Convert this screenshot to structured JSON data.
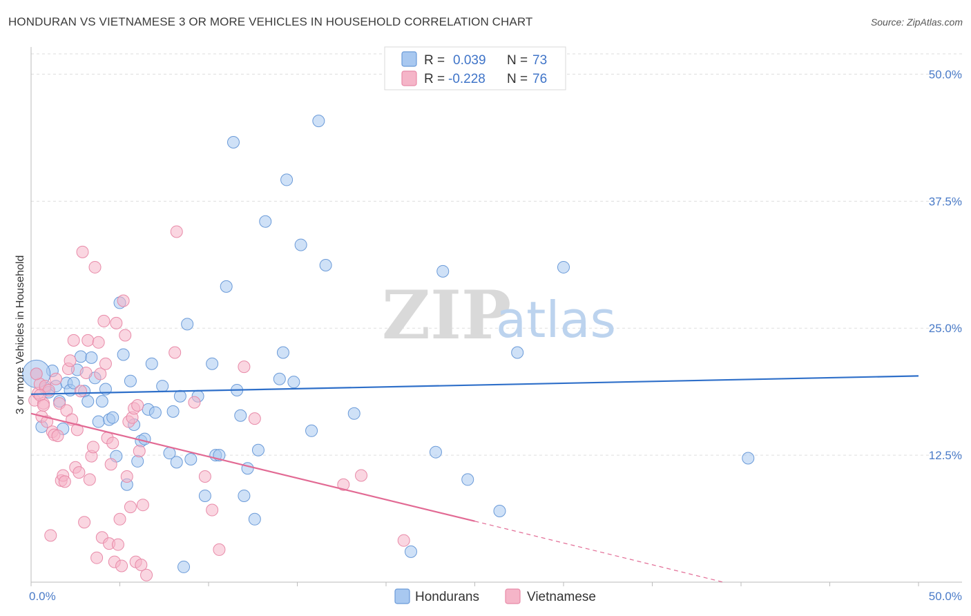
{
  "title": "HONDURAN VS VIETNAMESE 3 OR MORE VEHICLES IN HOUSEHOLD CORRELATION CHART",
  "source": "Source: ZipAtlas.com",
  "watermark": {
    "zip": "ZIP",
    "atlas": "atlas"
  },
  "legend": {
    "rows": [
      {
        "r_label": "R =",
        "r_value": "0.039",
        "n_label": "N =",
        "n_value": "73",
        "color": "#a8c8f0"
      },
      {
        "r_label": "R =",
        "r_value": "-0.228",
        "n_label": "N =",
        "n_value": "76",
        "color": "#f5b5c8"
      }
    ]
  },
  "bottom_legend": [
    "Hondurans",
    "Vietnamese"
  ],
  "chart_data": {
    "type": "scatter",
    "title": "HONDURAN VS VIETNAMESE 3 OR MORE VEHICLES IN HOUSEHOLD CORRELATION CHART",
    "xlabel": "",
    "ylabel": "3 or more Vehicles in Household",
    "xlim": [
      0,
      50
    ],
    "ylim": [
      0,
      52
    ],
    "x_tick_labels": [
      "0.0%",
      "50.0%"
    ],
    "y_ticks": [
      12.5,
      25.0,
      37.5,
      50.0
    ],
    "y_tick_labels": [
      "12.5%",
      "25.0%",
      "37.5%",
      "50.0%"
    ],
    "series": [
      {
        "name": "Hondurans",
        "color": "#a8c8f0",
        "stroke": "#6a9ad8",
        "trend": {
          "x0": 0,
          "y0": 18.5,
          "x1": 50,
          "y1": 20.3,
          "color": "#2e6fc9"
        },
        "points": [
          [
            0.3,
            20.5
          ],
          [
            0.6,
            15.3
          ],
          [
            0.8,
            19.1
          ],
          [
            1.0,
            18.7
          ],
          [
            1.2,
            20.8
          ],
          [
            1.4,
            19.3
          ],
          [
            1.6,
            17.8
          ],
          [
            1.8,
            15.1
          ],
          [
            2.0,
            19.6
          ],
          [
            2.2,
            18.9
          ],
          [
            2.4,
            19.6
          ],
          [
            2.6,
            20.9
          ],
          [
            2.8,
            22.2
          ],
          [
            3.0,
            18.8
          ],
          [
            3.2,
            17.8
          ],
          [
            3.4,
            22.1
          ],
          [
            3.6,
            20.1
          ],
          [
            3.8,
            15.8
          ],
          [
            4.0,
            17.8
          ],
          [
            4.2,
            19.0
          ],
          [
            4.4,
            16.0
          ],
          [
            4.6,
            16.2
          ],
          [
            4.8,
            12.4
          ],
          [
            5.0,
            27.5
          ],
          [
            5.2,
            22.4
          ],
          [
            5.4,
            9.6
          ],
          [
            5.6,
            19.8
          ],
          [
            5.8,
            15.5
          ],
          [
            6.0,
            11.9
          ],
          [
            6.2,
            13.9
          ],
          [
            6.4,
            14.1
          ],
          [
            6.6,
            17.0
          ],
          [
            6.8,
            21.5
          ],
          [
            7.0,
            16.7
          ],
          [
            7.4,
            19.3
          ],
          [
            7.8,
            12.7
          ],
          [
            8.0,
            16.8
          ],
          [
            8.2,
            11.8
          ],
          [
            8.4,
            18.3
          ],
          [
            8.6,
            1.5
          ],
          [
            8.8,
            25.4
          ],
          [
            9.0,
            12.1
          ],
          [
            9.4,
            18.3
          ],
          [
            9.8,
            8.5
          ],
          [
            10.2,
            21.5
          ],
          [
            10.4,
            12.5
          ],
          [
            10.6,
            12.5
          ],
          [
            11.0,
            29.1
          ],
          [
            11.4,
            43.3
          ],
          [
            11.6,
            18.9
          ],
          [
            11.8,
            16.4
          ],
          [
            12.0,
            8.5
          ],
          [
            12.2,
            11.2
          ],
          [
            12.6,
            6.2
          ],
          [
            12.8,
            13.0
          ],
          [
            13.2,
            35.5
          ],
          [
            14.0,
            20.0
          ],
          [
            14.2,
            22.6
          ],
          [
            14.4,
            39.6
          ],
          [
            14.8,
            19.7
          ],
          [
            15.2,
            33.2
          ],
          [
            15.8,
            14.9
          ],
          [
            16.2,
            45.4
          ],
          [
            16.6,
            31.2
          ],
          [
            18.2,
            16.6
          ],
          [
            21.4,
            3.0
          ],
          [
            22.8,
            12.8
          ],
          [
            23.2,
            30.6
          ],
          [
            24.6,
            10.1
          ],
          [
            26.4,
            7.0
          ],
          [
            27.4,
            22.6
          ],
          [
            30.0,
            31.0
          ],
          [
            40.4,
            12.2
          ]
        ],
        "big_point": [
          0.3,
          20.5
        ]
      },
      {
        "name": "Vietnamese",
        "color": "#f5b5c8",
        "stroke": "#e88aa8",
        "trend": {
          "x0": 0,
          "y0": 16.6,
          "x1": 25.0,
          "y1": 6.0,
          "color": "#e26a94",
          "dashed_to": [
            39.0,
            0.0
          ]
        },
        "points": [
          [
            0.2,
            17.9
          ],
          [
            0.4,
            18.6
          ],
          [
            0.5,
            19.5
          ],
          [
            0.6,
            16.3
          ],
          [
            0.7,
            17.6
          ],
          [
            0.8,
            19.3
          ],
          [
            0.9,
            15.8
          ],
          [
            1.0,
            18.9
          ],
          [
            1.1,
            4.6
          ],
          [
            1.2,
            14.8
          ],
          [
            1.3,
            14.5
          ],
          [
            1.4,
            20.0
          ],
          [
            1.5,
            14.4
          ],
          [
            1.6,
            17.6
          ],
          [
            1.7,
            10.0
          ],
          [
            1.8,
            10.5
          ],
          [
            1.9,
            9.9
          ],
          [
            2.0,
            16.9
          ],
          [
            2.1,
            21.0
          ],
          [
            2.2,
            21.8
          ],
          [
            2.3,
            16.0
          ],
          [
            2.4,
            23.8
          ],
          [
            2.5,
            11.3
          ],
          [
            2.6,
            15.0
          ],
          [
            2.7,
            10.8
          ],
          [
            2.8,
            18.8
          ],
          [
            2.9,
            32.5
          ],
          [
            3.0,
            5.9
          ],
          [
            3.1,
            20.6
          ],
          [
            3.2,
            23.8
          ],
          [
            3.3,
            10.1
          ],
          [
            3.4,
            12.4
          ],
          [
            3.5,
            13.3
          ],
          [
            3.6,
            31.0
          ],
          [
            3.7,
            2.4
          ],
          [
            3.8,
            23.6
          ],
          [
            3.9,
            20.5
          ],
          [
            4.0,
            4.4
          ],
          [
            4.1,
            25.7
          ],
          [
            4.2,
            21.5
          ],
          [
            4.3,
            14.2
          ],
          [
            4.4,
            3.8
          ],
          [
            4.5,
            11.6
          ],
          [
            4.6,
            13.7
          ],
          [
            4.7,
            2.0
          ],
          [
            4.8,
            25.5
          ],
          [
            4.9,
            3.7
          ],
          [
            5.0,
            6.2
          ],
          [
            5.1,
            1.6
          ],
          [
            5.2,
            27.7
          ],
          [
            5.3,
            24.3
          ],
          [
            5.4,
            10.4
          ],
          [
            5.5,
            15.8
          ],
          [
            5.6,
            7.4
          ],
          [
            5.7,
            16.2
          ],
          [
            5.8,
            17.1
          ],
          [
            5.9,
            2.0
          ],
          [
            6.0,
            17.4
          ],
          [
            6.1,
            12.9
          ],
          [
            6.2,
            1.7
          ],
          [
            6.3,
            7.6
          ],
          [
            6.5,
            0.7
          ],
          [
            8.2,
            34.5
          ],
          [
            8.1,
            22.6
          ],
          [
            9.2,
            17.7
          ],
          [
            9.8,
            10.4
          ],
          [
            10.2,
            7.1
          ],
          [
            10.6,
            3.2
          ],
          [
            12.0,
            21.2
          ],
          [
            12.6,
            16.1
          ],
          [
            17.6,
            9.6
          ],
          [
            18.6,
            10.5
          ],
          [
            21.0,
            4.1
          ],
          [
            0.3,
            20.5
          ],
          [
            0.5,
            18.4
          ],
          [
            0.7,
            17.4
          ]
        ]
      }
    ]
  }
}
